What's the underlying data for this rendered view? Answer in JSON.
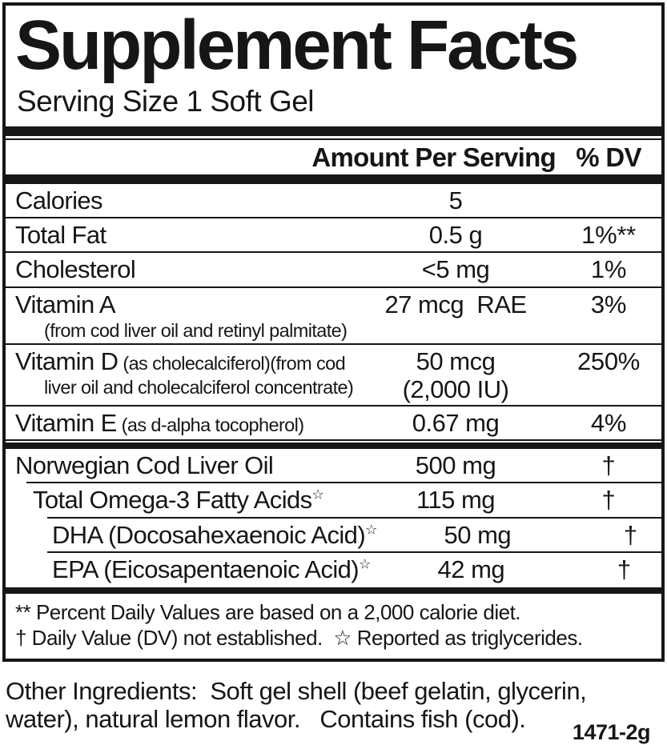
{
  "label": {
    "title": "Supplement Facts",
    "serving_size": "Serving Size 1 Soft Gel",
    "columns": {
      "amount": "Amount Per Serving",
      "dv": "% DV"
    },
    "symbols": {
      "star": "☆",
      "dagger": "†"
    },
    "rows": [
      {
        "name": "Calories",
        "amount": "5",
        "dv": "",
        "sep_after": "full"
      },
      {
        "name": "Total Fat",
        "amount": "0.5 g",
        "dv": "1%**",
        "sep_after": "full"
      },
      {
        "name": "Cholesterol",
        "amount": "<5 mg",
        "dv": "1%",
        "sep_after": "full"
      },
      {
        "name": "Vitamin A",
        "name_line2": "(from cod liver oil and retinyl palmitate)",
        "amount": "27 mcg  RAE",
        "dv": "3%",
        "sep_after": "full"
      },
      {
        "name": "Vitamin D",
        "name_small": " (as cholecalciferol)(from cod",
        "name_line2": "liver oil and cholecalciferol concentrate)",
        "amount": "50 mcg",
        "amount_line2": "(2,000 IU)",
        "dv": "250%",
        "sep_after": "full"
      },
      {
        "name": "Vitamin E",
        "name_small": " (as d-alpha tocopherol)",
        "amount": "0.67 mg",
        "dv": "4%",
        "sep_after": "full"
      },
      {
        "name": "Norwegian Cod Liver Oil",
        "amount": "500 mg",
        "dv": "†",
        "thick_bar_before": true,
        "sep_after": "inset1"
      },
      {
        "name": "Total Omega-3 Fatty Acids",
        "star": true,
        "indent": 1,
        "amount": "115 mg",
        "dv": "†",
        "sep_after": "inset2"
      },
      {
        "name": "DHA (Docosahexaenoic Acid)",
        "star": true,
        "indent": 2,
        "amount": "50 mg",
        "dv": "†",
        "sep_after": "inset2"
      },
      {
        "name": "EPA (Eicosapentaenoic Acid)",
        "star": true,
        "indent": 2,
        "amount": "42 mg",
        "dv": "†",
        "sep_after": "none"
      }
    ],
    "footnotes": [
      "** Percent Daily Values are based on a 2,000 calorie diet.",
      "† Daily Value (DV) not established.  ☆ Reported as triglycerides."
    ],
    "other_ingredients": [
      "Other Ingredients:  Soft gel shell (beef gelatin, glycerin,",
      "water), natural lemon flavor.   Contains fish (cod)."
    ],
    "product_code": "1471-2g"
  }
}
